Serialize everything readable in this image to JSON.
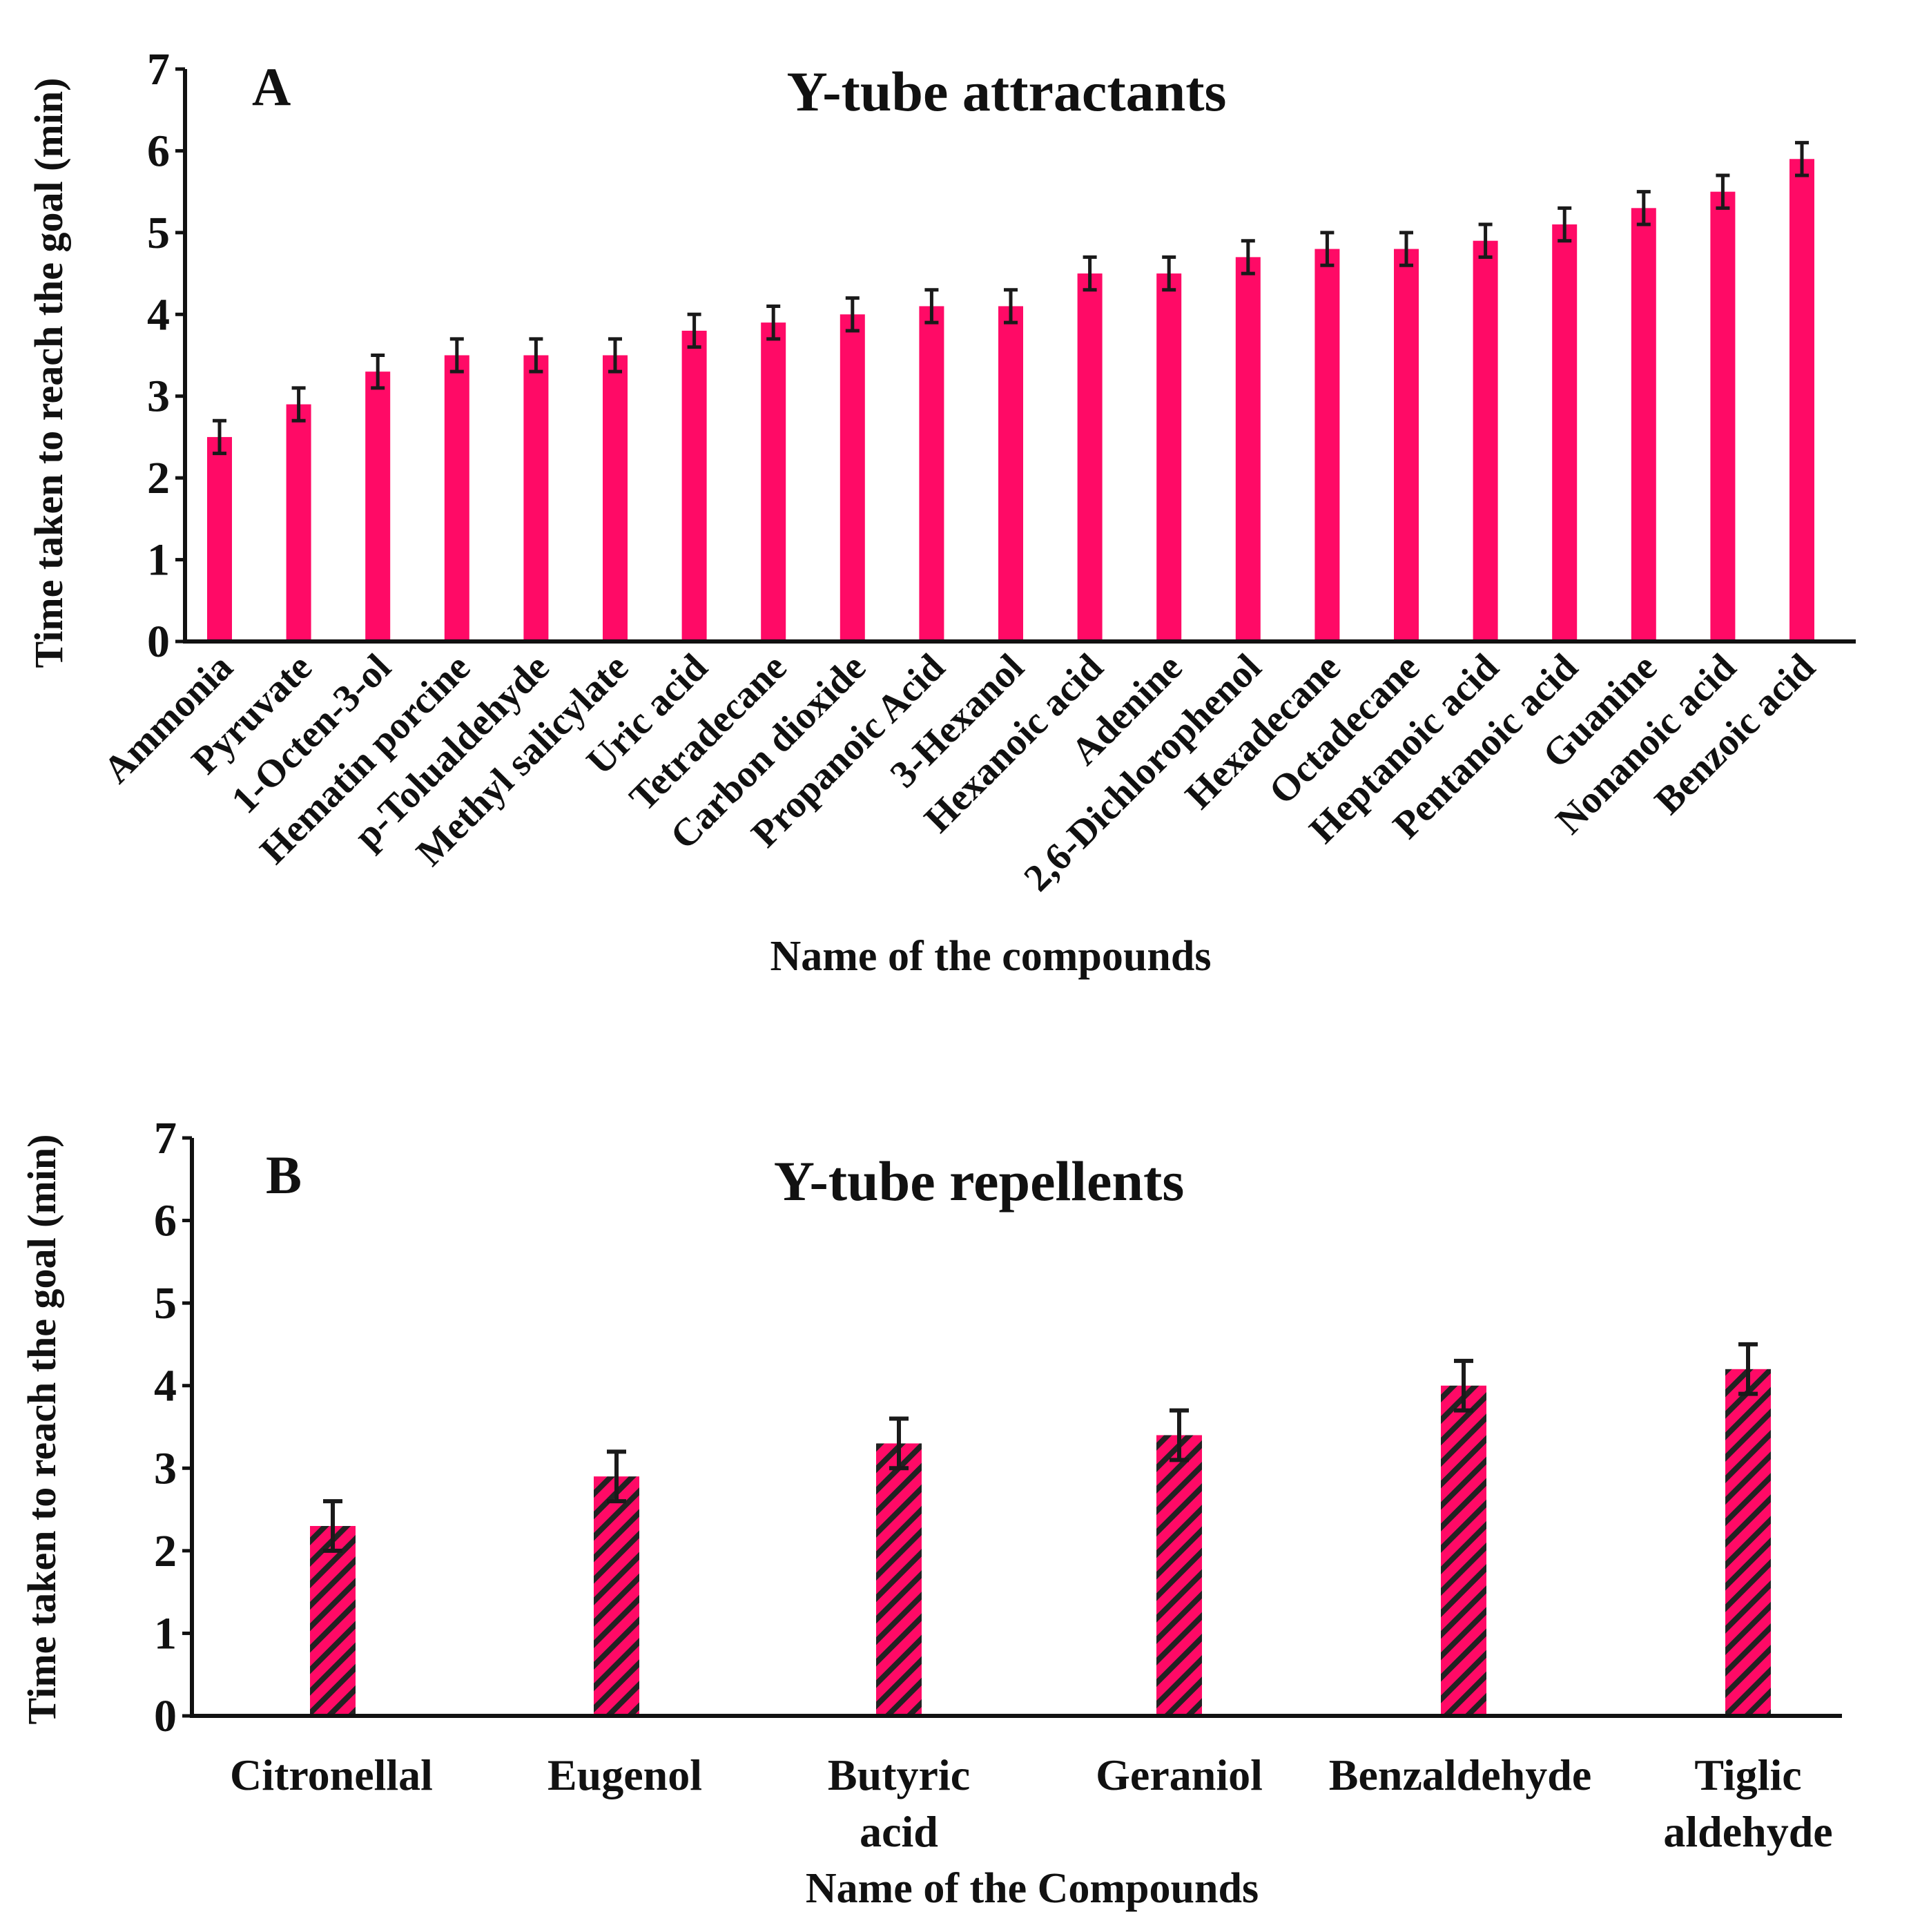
{
  "chart_data": [
    {
      "type": "bar",
      "panel": "A",
      "title": "Y-tube attractants",
      "xlabel": "Name of the compounds",
      "ylabel": "Time taken to reach the goal (min)",
      "ylim": [
        0,
        7
      ],
      "yticks": [
        0,
        1,
        2,
        3,
        4,
        5,
        6,
        7
      ],
      "fill": "solid",
      "categories": [
        "Ammonia",
        "Pyruvate",
        "1-Octen-3-ol",
        "Hematin porcine",
        "p-Tolualdehyde",
        "Methyl salicylate",
        "Uric acid",
        "Tetradecane",
        "Carbon dioxide",
        "Propanoic Acid",
        "3-Hexanol",
        "Hexanoic acid",
        "Adenine",
        "2,6-Dichlorophenol",
        "Hexadecane",
        "Octadecane",
        "Heptanoic acid",
        "Pentanoic acid",
        "Guanine",
        "Nonanoic acid",
        "Benzoic acid"
      ],
      "values": [
        2.5,
        2.9,
        3.3,
        3.5,
        3.5,
        3.5,
        3.8,
        3.9,
        4.0,
        4.1,
        4.1,
        4.5,
        4.5,
        4.7,
        4.8,
        4.8,
        4.9,
        5.1,
        5.3,
        5.5,
        5.9
      ],
      "errors": [
        0.2,
        0.2,
        0.2,
        0.2,
        0.2,
        0.2,
        0.2,
        0.2,
        0.2,
        0.2,
        0.2,
        0.2,
        0.2,
        0.2,
        0.2,
        0.2,
        0.2,
        0.2,
        0.2,
        0.2,
        0.2
      ]
    },
    {
      "type": "bar",
      "panel": "B",
      "title": "Y-tube repellents",
      "xlabel": "Name of the Compounds",
      "ylabel": "Time taken to reach the goal (min)",
      "ylim": [
        0,
        7
      ],
      "yticks": [
        0,
        1,
        2,
        3,
        4,
        5,
        6,
        7
      ],
      "fill": "hatched",
      "categories": [
        [
          "Citronellal"
        ],
        [
          "Eugenol"
        ],
        [
          "Butyric",
          "acid"
        ],
        [
          "Geraniol"
        ],
        [
          "Benzaldehyde"
        ],
        [
          "Tiglic",
          "aldehyde"
        ]
      ],
      "values": [
        2.3,
        2.9,
        3.3,
        3.4,
        4.0,
        4.2
      ],
      "errors": [
        0.3,
        0.3,
        0.3,
        0.3,
        0.3,
        0.3
      ]
    }
  ],
  "colors": {
    "bar": "#ff0a66",
    "hatch": "#222222",
    "axis": "#111111",
    "error": "#1a1a1a"
  }
}
